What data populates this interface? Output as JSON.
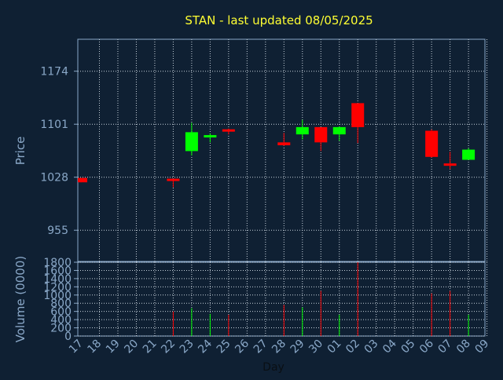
{
  "chart_data": {
    "type": "candlestick",
    "title": "STAN - last updated 08/05/2025",
    "colors": {
      "background": "#0f2033",
      "axis": "#8aa8c8",
      "grid": "#c8d2dc",
      "title": "#ffff33",
      "up": "#00ff00",
      "down": "#ff0000"
    },
    "price_panel": {
      "ylabel": "Price",
      "ylim": [
        912,
        1218
      ],
      "yticks": [
        955,
        1028,
        1101,
        1174
      ]
    },
    "volume_panel": {
      "ylabel": "Volume (0000)",
      "ylim": [
        0,
        1800
      ],
      "yticks": [
        0,
        200,
        400,
        600,
        800,
        1000,
        1200,
        1400,
        1600,
        1800
      ]
    },
    "xlabel": "Day",
    "x_ticks": [
      "17",
      "18",
      "19",
      "20",
      "21",
      "22",
      "23",
      "24",
      "25",
      "26",
      "27",
      "28",
      "29",
      "30",
      "01",
      "02",
      "03",
      "04",
      "05",
      "06",
      "07",
      "08",
      "09"
    ],
    "candles": [
      {
        "day": "17",
        "open": 1027,
        "high": 1027,
        "low": 1021,
        "close": 1021,
        "volume": 0
      },
      {
        "day": "22",
        "open": 1026,
        "high": 1026,
        "low": 1014,
        "close": 1024,
        "volume": 600
      },
      {
        "day": "23",
        "open": 1064,
        "high": 1103,
        "low": 1058,
        "close": 1090,
        "volume": 680
      },
      {
        "day": "24",
        "open": 1084,
        "high": 1088,
        "low": 1076,
        "close": 1086,
        "volume": 540
      },
      {
        "day": "25",
        "open": 1094,
        "high": 1095,
        "low": 1087,
        "close": 1092,
        "volume": 520
      },
      {
        "day": "28",
        "open": 1076,
        "high": 1089,
        "low": 1071,
        "close": 1072,
        "volume": 760
      },
      {
        "day": "29",
        "open": 1087,
        "high": 1107,
        "low": 1080,
        "close": 1097,
        "volume": 700
      },
      {
        "day": "30",
        "open": 1097,
        "high": 1097,
        "low": 1064,
        "close": 1076,
        "volume": 1100
      },
      {
        "day": "01",
        "open": 1087,
        "high": 1098,
        "low": 1078,
        "close": 1097,
        "volume": 520
      },
      {
        "day": "02",
        "open": 1130,
        "high": 1130,
        "low": 1075,
        "close": 1097,
        "volume": 1800
      },
      {
        "day": "06",
        "open": 1092,
        "high": 1094,
        "low": 1055,
        "close": 1056,
        "volume": 1040
      },
      {
        "day": "07",
        "open": 1047,
        "high": 1063,
        "low": 1039,
        "close": 1045,
        "volume": 1100
      },
      {
        "day": "08",
        "open": 1052,
        "high": 1068,
        "low": 1052,
        "close": 1066,
        "volume": 520
      }
    ]
  }
}
